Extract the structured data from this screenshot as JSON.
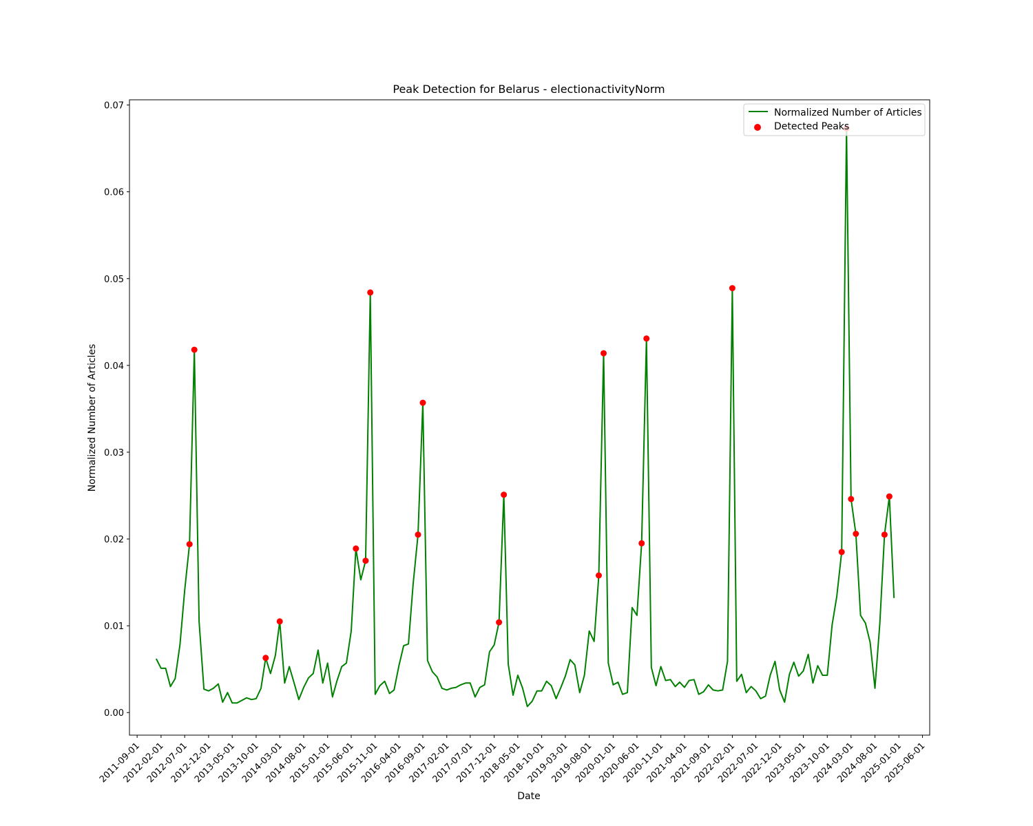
{
  "chart_data": {
    "type": "line",
    "title": "Peak Detection for Belarus - electionactivityNorm",
    "xlabel": "Date",
    "ylabel": "Normalized Number of Articles",
    "x_range": [
      "2011-07-14",
      "2025-07-17"
    ],
    "ylim": [
      -0.0026,
      0.0706
    ],
    "x_ticks": [
      "2011-09-01",
      "2012-02-01",
      "2012-07-01",
      "2012-12-01",
      "2013-05-01",
      "2013-10-01",
      "2014-03-01",
      "2014-08-01",
      "2015-01-01",
      "2015-06-01",
      "2015-11-01",
      "2016-04-01",
      "2016-09-01",
      "2017-02-01",
      "2017-07-01",
      "2017-12-01",
      "2018-05-01",
      "2018-10-01",
      "2019-03-01",
      "2019-08-01",
      "2020-01-01",
      "2020-06-01",
      "2020-11-01",
      "2021-04-01",
      "2021-09-01",
      "2022-02-01",
      "2022-07-01",
      "2022-12-01",
      "2023-05-01",
      "2023-10-01",
      "2024-03-01",
      "2024-08-01",
      "2025-01-01",
      "2025-06-01"
    ],
    "y_ticks": [
      "0.00",
      "0.01",
      "0.02",
      "0.03",
      "0.04",
      "0.05",
      "0.06",
      "0.07"
    ],
    "legend_position": "top-right",
    "grid": false,
    "series": [
      {
        "name": "Normalized Number of Articles",
        "kind": "line",
        "color": "#008000",
        "points": [
          [
            "2012-01-01",
            0.0062
          ],
          [
            "2012-02-01",
            0.0051
          ],
          [
            "2012-03-01",
            0.0051
          ],
          [
            "2012-04-01",
            0.003
          ],
          [
            "2012-05-01",
            0.0039
          ],
          [
            "2012-06-01",
            0.0078
          ],
          [
            "2012-07-01",
            0.0141
          ],
          [
            "2012-08-01",
            0.0194
          ],
          [
            "2012-09-01",
            0.0418
          ],
          [
            "2012-10-01",
            0.0105
          ],
          [
            "2012-11-01",
            0.0027
          ],
          [
            "2012-12-01",
            0.0025
          ],
          [
            "2013-01-01",
            0.0028
          ],
          [
            "2013-02-01",
            0.0033
          ],
          [
            "2013-03-01",
            0.0012
          ],
          [
            "2013-04-01",
            0.0023
          ],
          [
            "2013-05-01",
            0.0011
          ],
          [
            "2013-06-01",
            0.0011
          ],
          [
            "2013-07-01",
            0.0014
          ],
          [
            "2013-08-01",
            0.0017
          ],
          [
            "2013-09-01",
            0.0015
          ],
          [
            "2013-10-01",
            0.0016
          ],
          [
            "2013-11-01",
            0.0028
          ],
          [
            "2013-12-01",
            0.0063
          ],
          [
            "2014-01-01",
            0.0045
          ],
          [
            "2014-02-01",
            0.0066
          ],
          [
            "2014-03-01",
            0.0105
          ],
          [
            "2014-04-01",
            0.0034
          ],
          [
            "2014-05-01",
            0.0053
          ],
          [
            "2014-06-01",
            0.0034
          ],
          [
            "2014-07-01",
            0.0015
          ],
          [
            "2014-08-01",
            0.0029
          ],
          [
            "2014-09-01",
            0.004
          ],
          [
            "2014-10-01",
            0.0045
          ],
          [
            "2014-11-01",
            0.0072
          ],
          [
            "2014-12-01",
            0.0034
          ],
          [
            "2015-01-01",
            0.0057
          ],
          [
            "2015-02-01",
            0.0018
          ],
          [
            "2015-03-01",
            0.0036
          ],
          [
            "2015-04-01",
            0.0053
          ],
          [
            "2015-05-01",
            0.0057
          ],
          [
            "2015-06-01",
            0.0094
          ],
          [
            "2015-07-01",
            0.0189
          ],
          [
            "2015-08-01",
            0.0153
          ],
          [
            "2015-09-01",
            0.0175
          ],
          [
            "2015-10-01",
            0.0484
          ],
          [
            "2015-11-01",
            0.0021
          ],
          [
            "2015-12-01",
            0.0031
          ],
          [
            "2016-01-01",
            0.0036
          ],
          [
            "2016-02-01",
            0.0022
          ],
          [
            "2016-03-01",
            0.0026
          ],
          [
            "2016-04-01",
            0.0054
          ],
          [
            "2016-05-01",
            0.0077
          ],
          [
            "2016-06-01",
            0.0079
          ],
          [
            "2016-07-01",
            0.0148
          ],
          [
            "2016-08-01",
            0.0205
          ],
          [
            "2016-09-01",
            0.0357
          ],
          [
            "2016-10-01",
            0.006
          ],
          [
            "2016-11-01",
            0.0047
          ],
          [
            "2016-12-01",
            0.0041
          ],
          [
            "2017-01-01",
            0.0028
          ],
          [
            "2017-02-01",
            0.0026
          ],
          [
            "2017-03-01",
            0.0028
          ],
          [
            "2017-04-01",
            0.0029
          ],
          [
            "2017-05-01",
            0.0032
          ],
          [
            "2017-06-01",
            0.0034
          ],
          [
            "2017-07-01",
            0.0034
          ],
          [
            "2017-08-01",
            0.0018
          ],
          [
            "2017-09-01",
            0.0029
          ],
          [
            "2017-10-01",
            0.0032
          ],
          [
            "2017-11-01",
            0.007
          ],
          [
            "2017-12-01",
            0.0078
          ],
          [
            "2018-01-01",
            0.0104
          ],
          [
            "2018-02-01",
            0.0251
          ],
          [
            "2018-03-01",
            0.0056
          ],
          [
            "2018-04-01",
            0.002
          ],
          [
            "2018-05-01",
            0.0043
          ],
          [
            "2018-06-01",
            0.0028
          ],
          [
            "2018-07-01",
            0.0007
          ],
          [
            "2018-08-01",
            0.0013
          ],
          [
            "2018-09-01",
            0.0025
          ],
          [
            "2018-10-01",
            0.0025
          ],
          [
            "2018-11-01",
            0.0036
          ],
          [
            "2018-12-01",
            0.0031
          ],
          [
            "2019-01-01",
            0.0016
          ],
          [
            "2019-02-01",
            0.0029
          ],
          [
            "2019-03-01",
            0.0042
          ],
          [
            "2019-04-01",
            0.0061
          ],
          [
            "2019-05-01",
            0.0055
          ],
          [
            "2019-06-01",
            0.0023
          ],
          [
            "2019-07-01",
            0.0043
          ],
          [
            "2019-08-01",
            0.0094
          ],
          [
            "2019-09-01",
            0.0082
          ],
          [
            "2019-10-01",
            0.0158
          ],
          [
            "2019-11-01",
            0.0414
          ],
          [
            "2019-12-01",
            0.0057
          ],
          [
            "2020-01-01",
            0.0032
          ],
          [
            "2020-02-01",
            0.0035
          ],
          [
            "2020-03-01",
            0.0021
          ],
          [
            "2020-04-01",
            0.0023
          ],
          [
            "2020-05-01",
            0.0121
          ],
          [
            "2020-06-01",
            0.0112
          ],
          [
            "2020-07-01",
            0.0195
          ],
          [
            "2020-08-01",
            0.0431
          ],
          [
            "2020-09-01",
            0.0052
          ],
          [
            "2020-10-01",
            0.0031
          ],
          [
            "2020-11-01",
            0.0053
          ],
          [
            "2020-12-01",
            0.0037
          ],
          [
            "2021-01-01",
            0.0038
          ],
          [
            "2021-02-01",
            0.003
          ],
          [
            "2021-03-01",
            0.0035
          ],
          [
            "2021-04-01",
            0.0029
          ],
          [
            "2021-05-01",
            0.0037
          ],
          [
            "2021-06-01",
            0.0038
          ],
          [
            "2021-07-01",
            0.0021
          ],
          [
            "2021-08-01",
            0.0024
          ],
          [
            "2021-09-01",
            0.0032
          ],
          [
            "2021-10-01",
            0.0026
          ],
          [
            "2021-11-01",
            0.0025
          ],
          [
            "2021-12-01",
            0.0026
          ],
          [
            "2022-01-01",
            0.0059
          ],
          [
            "2022-02-01",
            0.0489
          ],
          [
            "2022-03-01",
            0.0036
          ],
          [
            "2022-04-01",
            0.0044
          ],
          [
            "2022-05-01",
            0.0023
          ],
          [
            "2022-06-01",
            0.003
          ],
          [
            "2022-07-01",
            0.0025
          ],
          [
            "2022-08-01",
            0.0016
          ],
          [
            "2022-09-01",
            0.0019
          ],
          [
            "2022-10-01",
            0.0043
          ],
          [
            "2022-11-01",
            0.0059
          ],
          [
            "2022-12-01",
            0.0026
          ],
          [
            "2023-01-01",
            0.0012
          ],
          [
            "2023-02-01",
            0.0044
          ],
          [
            "2023-03-01",
            0.0058
          ],
          [
            "2023-04-01",
            0.0042
          ],
          [
            "2023-05-01",
            0.0048
          ],
          [
            "2023-06-01",
            0.0067
          ],
          [
            "2023-07-01",
            0.0034
          ],
          [
            "2023-08-01",
            0.0054
          ],
          [
            "2023-09-01",
            0.0043
          ],
          [
            "2023-10-01",
            0.0043
          ],
          [
            "2023-11-01",
            0.0101
          ],
          [
            "2023-12-01",
            0.0134
          ],
          [
            "2024-01-01",
            0.0185
          ],
          [
            "2024-02-01",
            0.0673
          ],
          [
            "2024-03-01",
            0.0246
          ],
          [
            "2024-04-01",
            0.0206
          ],
          [
            "2024-05-01",
            0.0112
          ],
          [
            "2024-06-01",
            0.0103
          ],
          [
            "2024-07-01",
            0.0081
          ],
          [
            "2024-08-01",
            0.0028
          ],
          [
            "2024-09-01",
            0.0103
          ],
          [
            "2024-10-01",
            0.0205
          ],
          [
            "2024-11-01",
            0.0249
          ],
          [
            "2024-12-01",
            0.0132
          ]
        ]
      },
      {
        "name": "Detected Peaks",
        "kind": "scatter",
        "color": "#ff0000",
        "points": [
          [
            "2012-08-01",
            0.0194
          ],
          [
            "2012-09-01",
            0.0418
          ],
          [
            "2013-12-01",
            0.0063
          ],
          [
            "2014-03-01",
            0.0105
          ],
          [
            "2015-07-01",
            0.0189
          ],
          [
            "2015-09-01",
            0.0175
          ],
          [
            "2015-10-01",
            0.0484
          ],
          [
            "2016-08-01",
            0.0205
          ],
          [
            "2016-09-01",
            0.0357
          ],
          [
            "2018-01-01",
            0.0104
          ],
          [
            "2018-02-01",
            0.0251
          ],
          [
            "2019-10-01",
            0.0158
          ],
          [
            "2019-11-01",
            0.0414
          ],
          [
            "2020-07-01",
            0.0195
          ],
          [
            "2020-08-01",
            0.0431
          ],
          [
            "2022-02-01",
            0.0489
          ],
          [
            "2024-01-01",
            0.0185
          ],
          [
            "2024-02-01",
            0.0673
          ],
          [
            "2024-03-01",
            0.0246
          ],
          [
            "2024-04-01",
            0.0206
          ],
          [
            "2024-10-01",
            0.0205
          ],
          [
            "2024-11-01",
            0.0249
          ]
        ]
      }
    ]
  }
}
